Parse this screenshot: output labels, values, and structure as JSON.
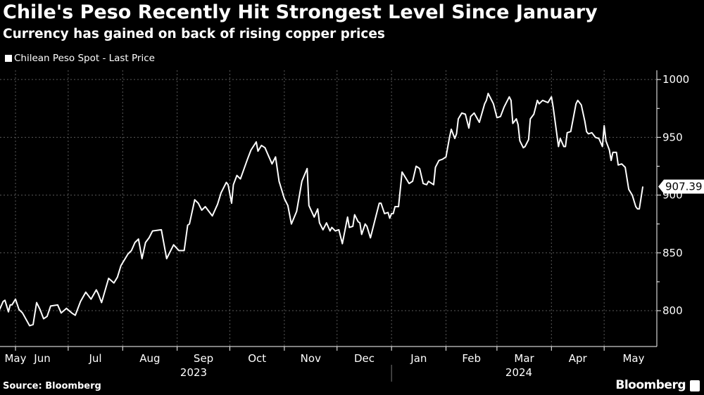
{
  "header": {
    "title": "Chile's Peso Recently Hit Strongest Level Since January",
    "subtitle": "Currency has gained on back of rising copper prices"
  },
  "footer": {
    "source": "Source: Bloomberg",
    "brand": "Bloomberg"
  },
  "colors": {
    "background": "#000000",
    "line": "#ffffff",
    "grid": "#5a5a5a",
    "text": "#ffffff"
  },
  "chart_data": {
    "type": "line",
    "title": "Chile's Peso Recently Hit Strongest Level Since January",
    "subtitle": "Currency has gained on back of rising copper prices",
    "legend": {
      "placement": "top-left",
      "entries": [
        "Chilean Peso Spot - Last Price"
      ]
    },
    "grid": true,
    "y_axis": {
      "side": "right",
      "ylim": [
        769,
        1008
      ],
      "ticks": [
        800,
        850,
        900,
        950,
        1000
      ],
      "minor_ticks": [
        825,
        875,
        925,
        975
      ]
    },
    "x_axis": {
      "month_labels": [
        "May",
        "Jun",
        "Jul",
        "Aug",
        "Sep",
        "Oct",
        "Nov",
        "Dec",
        "Jan",
        "Feb",
        "Mar",
        "Apr",
        "May"
      ],
      "year_labels": [
        "2023",
        "2024"
      ]
    },
    "last_value_label": "907.39",
    "series": [
      {
        "name": "Chilean Peso Spot - Last Price",
        "points": [
          [
            "2023-05-23",
            801
          ],
          [
            "2023-05-25",
            808
          ],
          [
            "2023-05-26",
            809
          ],
          [
            "2023-05-28",
            799
          ],
          [
            "2023-05-29",
            805
          ],
          [
            "2023-05-30",
            805
          ],
          [
            "2023-06-01",
            810
          ],
          [
            "2023-06-03",
            801
          ],
          [
            "2023-06-05",
            798
          ],
          [
            "2023-06-09",
            787
          ],
          [
            "2023-06-11",
            788
          ],
          [
            "2023-06-13",
            807
          ],
          [
            "2023-06-15",
            801
          ],
          [
            "2023-06-17",
            793
          ],
          [
            "2023-06-19",
            795
          ],
          [
            "2023-06-21",
            804
          ],
          [
            "2023-06-25",
            805
          ],
          [
            "2023-06-27",
            798
          ],
          [
            "2023-06-30",
            802
          ],
          [
            "2023-07-03",
            798
          ],
          [
            "2023-07-05",
            796
          ],
          [
            "2023-07-08",
            808
          ],
          [
            "2023-07-11",
            816
          ],
          [
            "2023-07-14",
            810
          ],
          [
            "2023-07-17",
            818
          ],
          [
            "2023-07-18",
            815
          ],
          [
            "2023-07-20",
            807
          ],
          [
            "2023-07-24",
            828
          ],
          [
            "2023-07-27",
            824
          ],
          [
            "2023-07-29",
            829
          ],
          [
            "2023-07-31",
            839
          ],
          [
            "2023-08-04",
            849
          ],
          [
            "2023-08-06",
            852
          ],
          [
            "2023-08-08",
            859
          ],
          [
            "2023-08-10",
            862
          ],
          [
            "2023-08-12",
            845
          ],
          [
            "2023-08-14",
            859
          ],
          [
            "2023-08-16",
            863
          ],
          [
            "2023-08-18",
            869
          ],
          [
            "2023-08-23",
            870
          ],
          [
            "2023-08-26",
            845
          ],
          [
            "2023-08-30",
            857
          ],
          [
            "2023-09-02",
            852
          ],
          [
            "2023-09-05",
            852
          ],
          [
            "2023-09-07",
            874
          ],
          [
            "2023-09-08",
            875
          ],
          [
            "2023-09-11",
            896
          ],
          [
            "2023-09-13",
            893
          ],
          [
            "2023-09-15",
            887
          ],
          [
            "2023-09-17",
            890
          ],
          [
            "2023-09-19",
            886
          ],
          [
            "2023-09-21",
            882
          ],
          [
            "2023-09-24",
            892
          ],
          [
            "2023-09-26",
            902
          ],
          [
            "2023-09-29",
            911
          ],
          [
            "2023-09-30",
            909
          ],
          [
            "2023-10-02",
            893
          ],
          [
            "2023-10-03",
            909
          ],
          [
            "2023-10-05",
            917
          ],
          [
            "2023-10-07",
            914
          ],
          [
            "2023-10-11",
            931
          ],
          [
            "2023-10-13",
            939
          ],
          [
            "2023-10-16",
            946
          ],
          [
            "2023-10-17",
            938
          ],
          [
            "2023-10-19",
            943
          ],
          [
            "2023-10-21",
            941
          ],
          [
            "2023-10-25",
            927
          ],
          [
            "2023-10-27",
            933
          ],
          [
            "2023-10-29",
            912
          ],
          [
            "2023-11-01",
            897
          ],
          [
            "2023-11-03",
            891
          ],
          [
            "2023-11-05",
            875
          ],
          [
            "2023-11-08",
            886
          ],
          [
            "2023-11-11",
            912
          ],
          [
            "2023-11-14",
            923
          ],
          [
            "2023-11-15",
            891
          ],
          [
            "2023-11-18",
            881
          ],
          [
            "2023-11-20",
            888
          ],
          [
            "2023-11-21",
            876
          ],
          [
            "2023-11-23",
            870
          ],
          [
            "2023-11-25",
            876
          ],
          [
            "2023-11-27",
            869
          ],
          [
            "2023-11-28",
            872
          ],
          [
            "2023-11-30",
            869
          ],
          [
            "2023-12-02",
            870
          ],
          [
            "2023-12-04",
            858
          ],
          [
            "2023-12-07",
            881
          ],
          [
            "2023-12-08",
            872
          ],
          [
            "2023-12-10",
            873
          ],
          [
            "2023-12-11",
            883
          ],
          [
            "2023-12-13",
            877
          ],
          [
            "2023-12-14",
            876
          ],
          [
            "2023-12-15",
            866
          ],
          [
            "2023-12-17",
            875
          ],
          [
            "2023-12-18",
            873
          ],
          [
            "2023-12-20",
            863
          ],
          [
            "2023-12-23",
            881
          ],
          [
            "2023-12-25",
            893
          ],
          [
            "2023-12-26",
            893
          ],
          [
            "2023-12-28",
            884
          ],
          [
            "2023-12-30",
            885
          ],
          [
            "2023-12-31",
            880
          ],
          [
            "2024-01-01",
            884
          ],
          [
            "2024-01-02",
            884
          ],
          [
            "2024-01-03",
            890
          ],
          [
            "2024-01-05",
            890
          ],
          [
            "2024-01-07",
            920
          ],
          [
            "2024-01-09",
            915
          ],
          [
            "2024-01-11",
            910
          ],
          [
            "2024-01-13",
            912
          ],
          [
            "2024-01-15",
            925
          ],
          [
            "2024-01-17",
            923
          ],
          [
            "2024-01-19",
            910
          ],
          [
            "2024-01-21",
            909
          ],
          [
            "2024-01-22",
            912
          ],
          [
            "2024-01-25",
            909
          ],
          [
            "2024-01-26",
            924
          ],
          [
            "2024-01-28",
            930
          ],
          [
            "2024-01-30",
            931
          ],
          [
            "2024-02-01",
            933
          ],
          [
            "2024-02-03",
            950
          ],
          [
            "2024-02-04",
            957
          ],
          [
            "2024-02-06",
            949
          ],
          [
            "2024-02-07",
            953
          ],
          [
            "2024-02-08",
            966
          ],
          [
            "2024-02-10",
            971
          ],
          [
            "2024-02-12",
            970
          ],
          [
            "2024-02-14",
            958
          ],
          [
            "2024-02-15",
            968
          ],
          [
            "2024-02-17",
            971
          ],
          [
            "2024-02-20",
            963
          ],
          [
            "2024-02-23",
            979
          ],
          [
            "2024-02-24",
            982
          ],
          [
            "2024-02-25",
            988
          ],
          [
            "2024-02-28",
            979
          ],
          [
            "2024-03-01",
            967
          ],
          [
            "2024-03-03",
            968
          ],
          [
            "2024-03-05",
            976
          ],
          [
            "2024-03-08",
            985
          ],
          [
            "2024-03-09",
            982
          ],
          [
            "2024-03-10",
            962
          ],
          [
            "2024-03-12",
            966
          ],
          [
            "2024-03-13",
            961
          ],
          [
            "2024-03-14",
            947
          ],
          [
            "2024-03-16",
            941
          ],
          [
            "2024-03-17",
            942
          ],
          [
            "2024-03-19",
            948
          ],
          [
            "2024-03-20",
            966
          ],
          [
            "2024-03-22",
            970
          ],
          [
            "2024-03-24",
            982
          ],
          [
            "2024-03-25",
            979
          ],
          [
            "2024-03-27",
            982
          ],
          [
            "2024-03-30",
            980
          ],
          [
            "2024-04-01",
            985
          ],
          [
            "2024-04-02",
            976
          ],
          [
            "2024-04-05",
            942
          ],
          [
            "2024-04-06",
            949
          ],
          [
            "2024-04-08",
            942
          ],
          [
            "2024-04-09",
            942
          ],
          [
            "2024-04-10",
            954
          ],
          [
            "2024-04-12",
            955
          ],
          [
            "2024-04-15",
            979
          ],
          [
            "2024-04-16",
            982
          ],
          [
            "2024-04-18",
            978
          ],
          [
            "2024-04-20",
            964
          ],
          [
            "2024-04-21",
            955
          ],
          [
            "2024-04-22",
            953
          ],
          [
            "2024-04-24",
            954
          ],
          [
            "2024-04-26",
            950
          ],
          [
            "2024-04-28",
            949
          ],
          [
            "2024-04-30",
            942
          ],
          [
            "2024-05-01",
            960
          ],
          [
            "2024-05-02",
            947
          ],
          [
            "2024-05-04",
            939
          ],
          [
            "2024-05-05",
            930
          ],
          [
            "2024-05-06",
            937
          ],
          [
            "2024-05-08",
            937
          ],
          [
            "2024-05-09",
            926
          ],
          [
            "2024-05-11",
            927
          ],
          [
            "2024-05-13",
            924
          ],
          [
            "2024-05-15",
            905
          ],
          [
            "2024-05-17",
            900
          ],
          [
            "2024-05-19",
            890
          ],
          [
            "2024-05-20",
            888
          ],
          [
            "2024-05-21",
            888
          ],
          [
            "2024-05-23",
            907.39
          ]
        ]
      }
    ]
  }
}
